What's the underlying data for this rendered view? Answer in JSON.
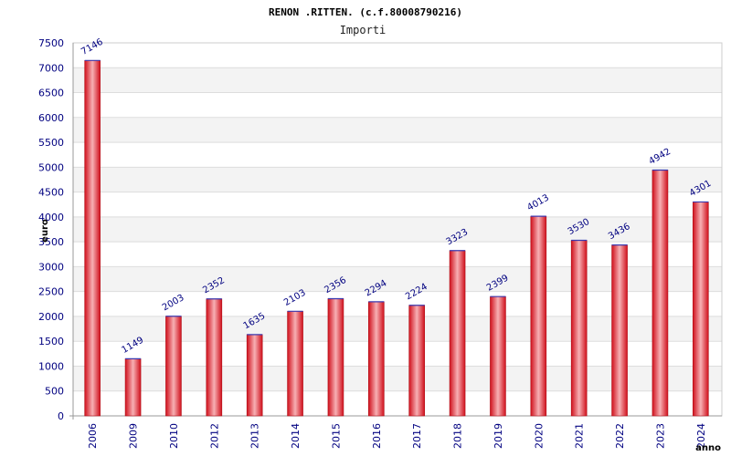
{
  "chart_data": {
    "type": "bar",
    "title": "RENON .RITTEN. (c.f.80008790216)",
    "subtitle": "Importi",
    "xlabel": "anno",
    "ylabel": "euro",
    "categories": [
      "2006",
      "2009",
      "2010",
      "2012",
      "2013",
      "2014",
      "2015",
      "2016",
      "2017",
      "2018",
      "2019",
      "2020",
      "2021",
      "2022",
      "2023",
      "2024"
    ],
    "series": [
      {
        "values": [
          7146,
          1149,
          2003,
          2352,
          1635,
          2103,
          2356,
          2294,
          2224,
          3323,
          2399,
          4013,
          3530,
          3436,
          4942,
          4301
        ]
      }
    ],
    "ylim": [
      0,
      7500
    ],
    "yticks": [
      0,
      500,
      1000,
      1500,
      2000,
      2500,
      3000,
      3500,
      4000,
      4500,
      5000,
      5500,
      6000,
      6500,
      7000,
      7500
    ],
    "grid": true,
    "legend": "none",
    "colors": {
      "bar": "#e8202a",
      "bar_highlight": "#f7b0b4",
      "label": "#000080",
      "band": "#f3f3f3"
    }
  }
}
